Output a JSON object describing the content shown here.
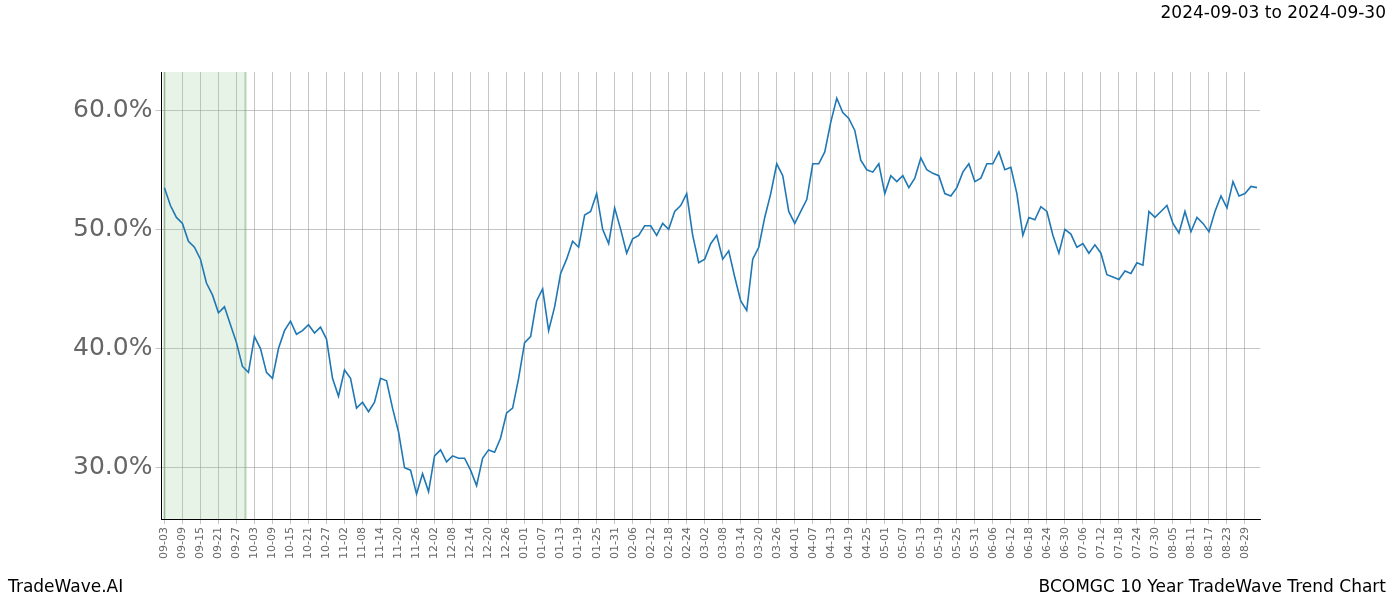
{
  "chart_data": {
    "type": "line",
    "subtitle": "2024-09-03 to 2024-09-30",
    "footer_left": "TradeWave.AI",
    "footer_right": "BCOMGC 10 Year TradeWave Trend Chart",
    "color": "#1f77b4",
    "grid": true,
    "highlight_range": [
      0,
      13.5
    ],
    "ylim": [
      25.7,
      63.2
    ],
    "yticks": [
      {
        "value": 30,
        "label": "30.0%"
      },
      {
        "value": 40,
        "label": "40.0%"
      },
      {
        "value": 50,
        "label": "50.0%"
      },
      {
        "value": 60,
        "label": "60.0%"
      }
    ],
    "categories": [
      "09-03",
      null,
      null,
      "09-09",
      null,
      null,
      "09-15",
      null,
      null,
      "09-21",
      null,
      null,
      "09-27",
      null,
      null,
      "10-03",
      null,
      null,
      "10-09",
      null,
      null,
      "10-15",
      null,
      null,
      "10-21",
      null,
      null,
      "10-27",
      null,
      null,
      "11-02",
      null,
      null,
      "11-08",
      null,
      null,
      "11-14",
      null,
      null,
      "11-20",
      null,
      null,
      "11-26",
      null,
      null,
      "12-02",
      null,
      null,
      "12-08",
      null,
      null,
      "12-14",
      null,
      null,
      "12-20",
      null,
      null,
      "12-26",
      null,
      null,
      "01-01",
      null,
      null,
      "01-07",
      null,
      null,
      "01-13",
      null,
      null,
      "01-19",
      null,
      null,
      "01-25",
      null,
      null,
      "01-31",
      null,
      null,
      "02-06",
      null,
      null,
      "02-12",
      null,
      null,
      "02-18",
      null,
      null,
      "02-24",
      null,
      null,
      "03-02",
      null,
      null,
      "03-08",
      null,
      null,
      "03-14",
      null,
      null,
      "03-20",
      null,
      null,
      "03-26",
      null,
      null,
      "04-01",
      null,
      null,
      "04-07",
      null,
      null,
      "04-13",
      null,
      null,
      "04-19",
      null,
      null,
      "04-25",
      null,
      null,
      "05-01",
      null,
      null,
      "05-07",
      null,
      null,
      "05-13",
      null,
      null,
      "05-19",
      null,
      null,
      "05-25",
      null,
      null,
      "05-31",
      null,
      null,
      "06-06",
      null,
      null,
      "06-12",
      null,
      null,
      "06-18",
      null,
      null,
      "06-24",
      null,
      null,
      "06-30",
      null,
      null,
      "07-06",
      null,
      null,
      "07-12",
      null,
      null,
      "07-18",
      null,
      null,
      "07-24",
      null,
      null,
      "07-30",
      null,
      null,
      "08-05",
      null,
      null,
      "08-11",
      null,
      null,
      "08-17",
      null,
      null,
      "08-23",
      null,
      null,
      "08-29",
      null,
      null
    ],
    "values": [
      53.5,
      52,
      51,
      50.5,
      49,
      48.5,
      47.5,
      45.5,
      44.5,
      43,
      43.5,
      42,
      40.5,
      38.5,
      38,
      41,
      40,
      38,
      37.5,
      40,
      41.5,
      42.3,
      41.2,
      41.5,
      42,
      41.3,
      41.8,
      40.8,
      37.5,
      36,
      38.2,
      37.5,
      35,
      35.5,
      34.7,
      35.5,
      37.5,
      37.3,
      35,
      33,
      30,
      29.8,
      27.8,
      29.5,
      28,
      31,
      31.5,
      30.5,
      31,
      30.8,
      30.8,
      29.8,
      28.5,
      30.8,
      31.5,
      31.3,
      32.5,
      34.6,
      35,
      37.5,
      40.5,
      41,
      44,
      45,
      41.5,
      43.5,
      46.3,
      47.5,
      49,
      48.5,
      51.2,
      51.5,
      53,
      50,
      48.8,
      51.8,
      50,
      48,
      49.2,
      49.5,
      50.3,
      50.3,
      49.5,
      50.5,
      50,
      51.5,
      52,
      53,
      49.5,
      47.2,
      47.5,
      48.8,
      49.5,
      47.5,
      48.2,
      46,
      44,
      43.2,
      47.5,
      48.5,
      51,
      53,
      55.5,
      54.5,
      51.5,
      50.5,
      51.5,
      52.5,
      55.5,
      55.5,
      56.5,
      59,
      61,
      59.8,
      59.3,
      58.3,
      55.8,
      55,
      54.8,
      55.5,
      53,
      54.5,
      54,
      54.5,
      53.5,
      54.3,
      56,
      55,
      54.7,
      54.5,
      53,
      52.8,
      53.5,
      54.8,
      55.5,
      54,
      54.3,
      55.5,
      55.5,
      56.5,
      55,
      55.2,
      53,
      49.5,
      51,
      50.8,
      51.9,
      51.5,
      49.5,
      48,
      50,
      49.6,
      48.5,
      48.8,
      48,
      48.7,
      48,
      46.2,
      46,
      45.8,
      46.5,
      46.3,
      47.2,
      47,
      51.5,
      51,
      51.5,
      52,
      50.5,
      49.7,
      51.5,
      49.8,
      51,
      50.5,
      49.8,
      51.5,
      52.8,
      51.8,
      54,
      52.8,
      53,
      53.6,
      53.5
    ]
  }
}
